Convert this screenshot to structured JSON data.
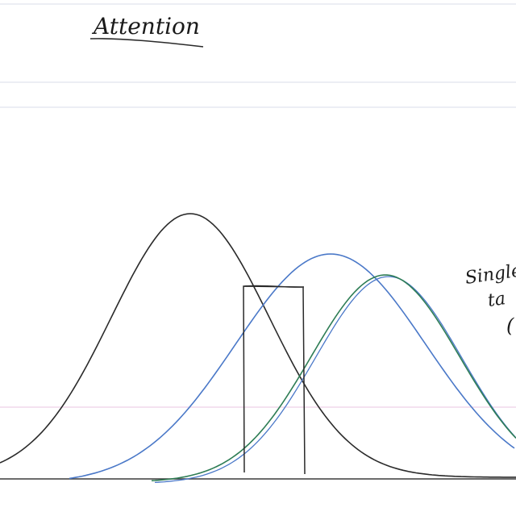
{
  "page": {
    "title": "Attention",
    "side_note": [
      "Single",
      "ta",
      "("
    ]
  },
  "colors": {
    "paper": "#ffffff",
    "ruled_line": "#d8dde8",
    "margin_line": "#e8c6e0",
    "ink_black": "#2a2a2a",
    "ink_blue": "#4a78c8",
    "ink_green": "#2e7d55",
    "baseline": "#3a3a3a"
  }
}
